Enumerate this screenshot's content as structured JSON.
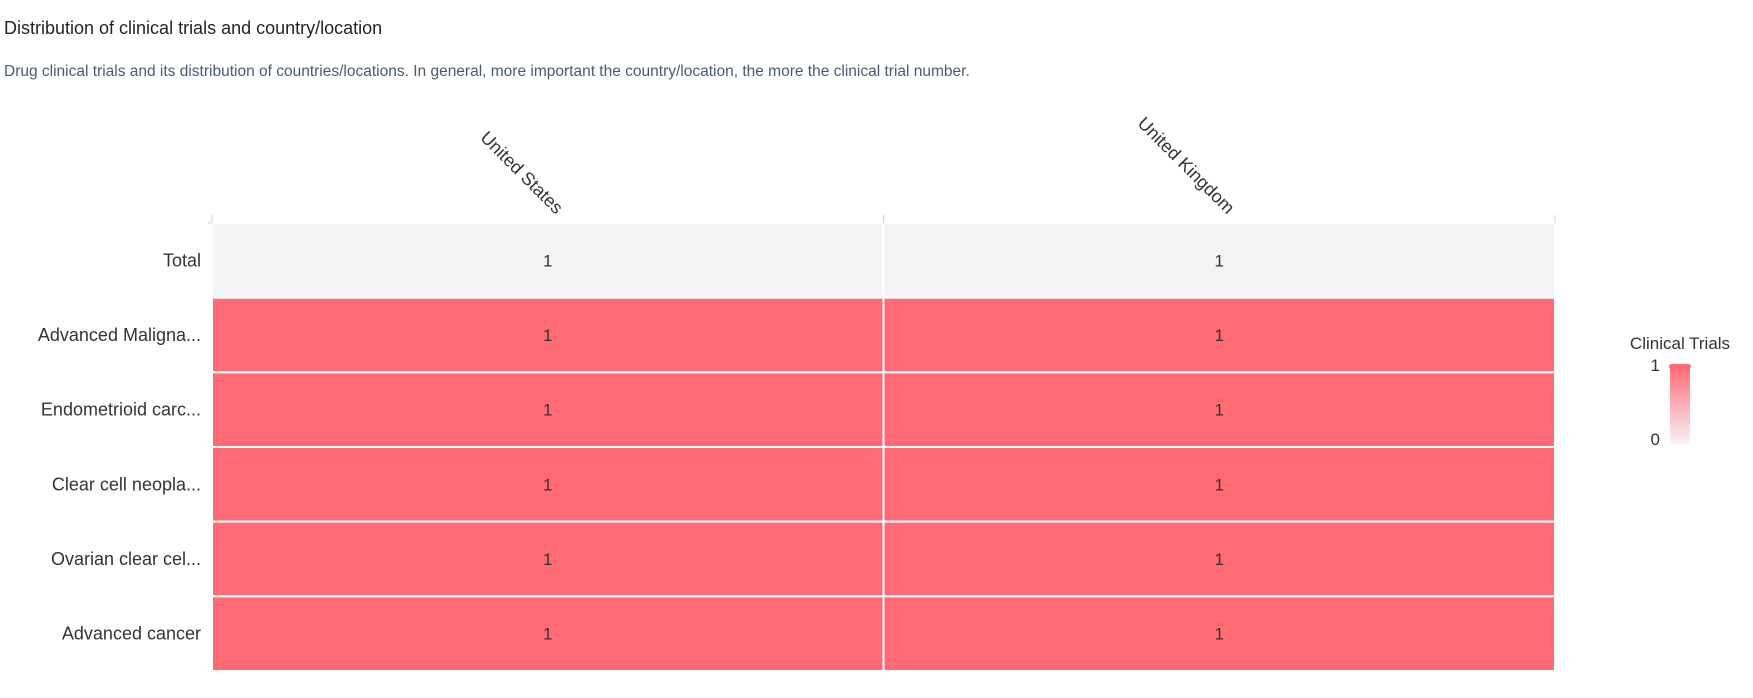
{
  "header": {
    "title": "Distribution of clinical trials and country/location",
    "subtitle": "Drug clinical trials and its distribution of countries/locations. In general, more important the country/location, the more the clinical trial number."
  },
  "colors": {
    "cell_high": "#ff6b75",
    "cell_total": "#f3f4f6",
    "cell_low": "#f3f4f6",
    "text": "#333333"
  },
  "chart_data": {
    "type": "heatmap",
    "x_categories": [
      "United States",
      "United Kingdom"
    ],
    "y_categories": [
      "Total",
      "Advanced Maligna...",
      "Endometrioid carc...",
      "Clear cell neopla...",
      "Ovarian clear cel...",
      "Advanced cancer"
    ],
    "values": [
      [
        1,
        1
      ],
      [
        1,
        1
      ],
      [
        1,
        1
      ],
      [
        1,
        1
      ],
      [
        1,
        1
      ],
      [
        1,
        1
      ]
    ],
    "total_row": "Total",
    "legend": {
      "title": "Clinical Trials",
      "max": 1,
      "min": 0,
      "max_label": "1",
      "min_label": "0",
      "placement": "right"
    }
  }
}
